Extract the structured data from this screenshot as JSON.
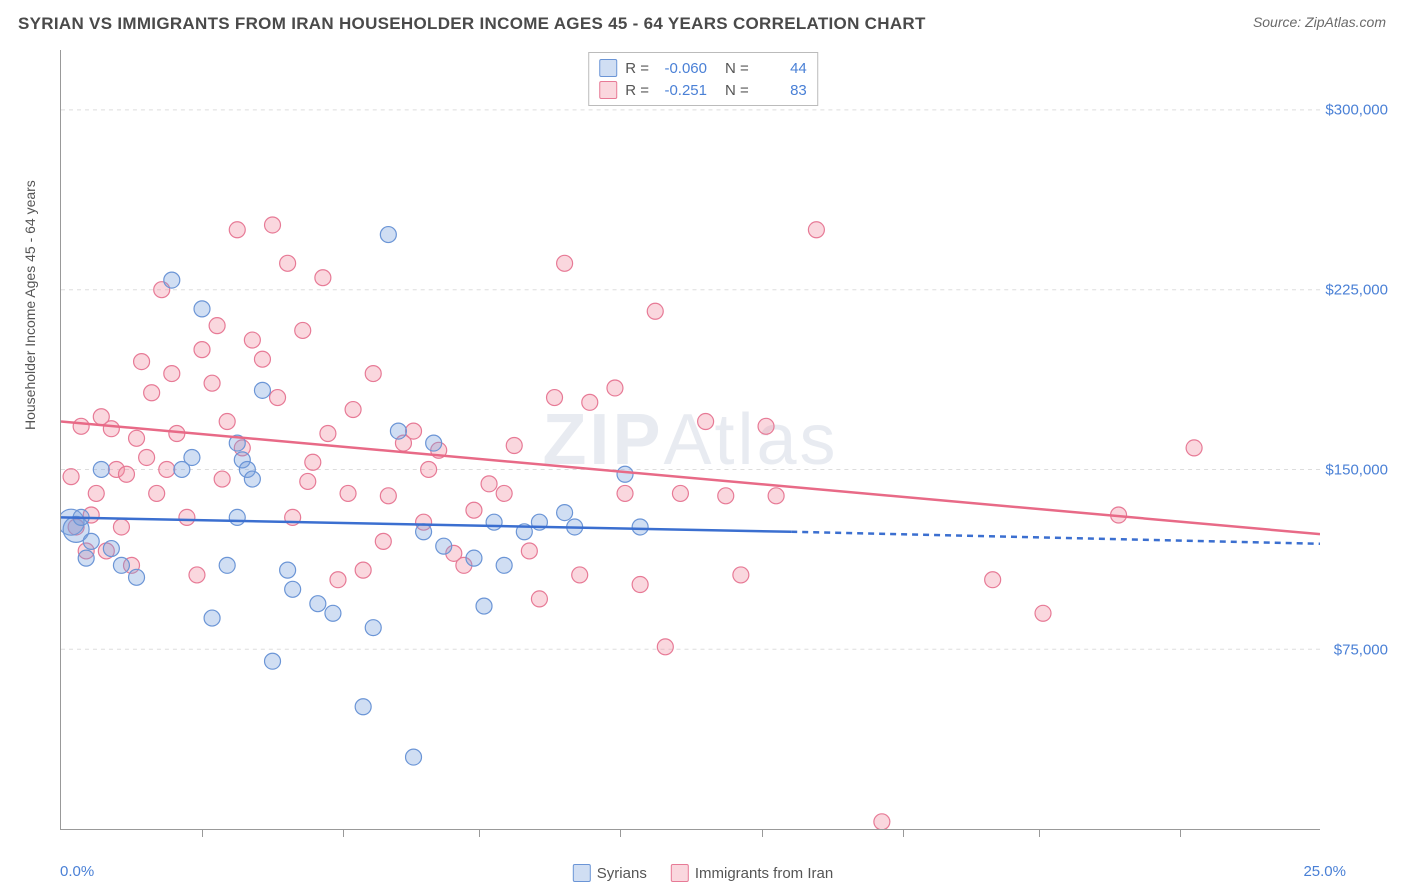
{
  "title": "SYRIAN VS IMMIGRANTS FROM IRAN HOUSEHOLDER INCOME AGES 45 - 64 YEARS CORRELATION CHART",
  "source": "Source: ZipAtlas.com",
  "watermark": "ZIPAtlas",
  "chart": {
    "type": "scatter",
    "ylabel": "Householder Income Ages 45 - 64 years",
    "xlim": [
      0,
      25
    ],
    "ylim": [
      0,
      325000
    ],
    "x_range_labels": [
      "0.0%",
      "25.0%"
    ],
    "y_tick_values": [
      75000,
      150000,
      225000,
      300000
    ],
    "y_tick_labels": [
      "$75,000",
      "$150,000",
      "$225,000",
      "$300,000"
    ],
    "x_tick_positions": [
      2.8,
      5.6,
      8.3,
      11.1,
      13.9,
      16.7,
      19.4,
      22.2
    ],
    "background_color": "#ffffff",
    "grid_color": "#dddddd",
    "axis_color": "#999999",
    "marker_radius": 8,
    "marker_radius_large": 13,
    "marker_stroke_width": 1.2,
    "trend_line_width": 2.5,
    "series": [
      {
        "name": "Syrians",
        "fill": "rgba(120,160,220,0.35)",
        "stroke": "#6b95d6",
        "line_color": "#3b6fd0",
        "r_value": "-0.060",
        "n_value": "44",
        "trend": {
          "x1": 0,
          "y1": 130000,
          "x2": 14.5,
          "y2": 124000,
          "x2_ext": 25,
          "y2_ext": 119000
        },
        "points": [
          [
            0.2,
            128000
          ],
          [
            0.3,
            125000
          ],
          [
            0.4,
            130000
          ],
          [
            0.5,
            113000
          ],
          [
            0.6,
            120000
          ],
          [
            0.8,
            150000
          ],
          [
            1.0,
            117000
          ],
          [
            1.2,
            110000
          ],
          [
            1.5,
            105000
          ],
          [
            2.2,
            229000
          ],
          [
            2.4,
            150000
          ],
          [
            2.6,
            155000
          ],
          [
            2.8,
            217000
          ],
          [
            3.0,
            88000
          ],
          [
            3.3,
            110000
          ],
          [
            3.5,
            130000
          ],
          [
            3.5,
            161000
          ],
          [
            3.6,
            154000
          ],
          [
            3.7,
            150000
          ],
          [
            3.8,
            146000
          ],
          [
            4.0,
            183000
          ],
          [
            4.2,
            70000
          ],
          [
            4.5,
            108000
          ],
          [
            4.6,
            100000
          ],
          [
            5.1,
            94000
          ],
          [
            5.4,
            90000
          ],
          [
            6.0,
            51000
          ],
          [
            6.2,
            84000
          ],
          [
            6.5,
            248000
          ],
          [
            6.7,
            166000
          ],
          [
            7.0,
            30000
          ],
          [
            7.2,
            124000
          ],
          [
            7.4,
            161000
          ],
          [
            7.6,
            118000
          ],
          [
            8.2,
            113000
          ],
          [
            8.4,
            93000
          ],
          [
            8.6,
            128000
          ],
          [
            8.8,
            110000
          ],
          [
            9.2,
            124000
          ],
          [
            9.5,
            128000
          ],
          [
            10.0,
            132000
          ],
          [
            10.2,
            126000
          ],
          [
            11.2,
            148000
          ],
          [
            11.5,
            126000
          ]
        ]
      },
      {
        "name": "Immigrants from Iran",
        "fill": "rgba(240,140,160,0.35)",
        "stroke": "#e77a96",
        "line_color": "#e86a87",
        "r_value": "-0.251",
        "n_value": "83",
        "trend": {
          "x1": 0,
          "y1": 170000,
          "x2": 25,
          "y2": 123000
        },
        "points": [
          [
            0.2,
            147000
          ],
          [
            0.3,
            126000
          ],
          [
            0.4,
            168000
          ],
          [
            0.5,
            116000
          ],
          [
            0.6,
            131000
          ],
          [
            0.7,
            140000
          ],
          [
            0.8,
            172000
          ],
          [
            1.0,
            167000
          ],
          [
            1.1,
            150000
          ],
          [
            1.2,
            126000
          ],
          [
            1.3,
            148000
          ],
          [
            1.5,
            163000
          ],
          [
            1.6,
            195000
          ],
          [
            1.7,
            155000
          ],
          [
            2.0,
            225000
          ],
          [
            2.2,
            190000
          ],
          [
            2.5,
            130000
          ],
          [
            2.7,
            106000
          ],
          [
            3.0,
            186000
          ],
          [
            3.2,
            146000
          ],
          [
            3.5,
            250000
          ],
          [
            3.6,
            159000
          ],
          [
            4.0,
            196000
          ],
          [
            4.2,
            252000
          ],
          [
            4.5,
            236000
          ],
          [
            4.8,
            208000
          ],
          [
            5.0,
            153000
          ],
          [
            5.2,
            230000
          ],
          [
            5.5,
            104000
          ],
          [
            5.8,
            175000
          ],
          [
            6.2,
            190000
          ],
          [
            6.5,
            139000
          ],
          [
            6.8,
            161000
          ],
          [
            7.0,
            166000
          ],
          [
            7.2,
            128000
          ],
          [
            7.5,
            158000
          ],
          [
            7.8,
            115000
          ],
          [
            8.0,
            110000
          ],
          [
            8.2,
            133000
          ],
          [
            8.5,
            144000
          ],
          [
            9.0,
            160000
          ],
          [
            9.3,
            116000
          ],
          [
            9.8,
            180000
          ],
          [
            10.0,
            236000
          ],
          [
            10.3,
            106000
          ],
          [
            10.5,
            178000
          ],
          [
            11.0,
            184000
          ],
          [
            11.2,
            140000
          ],
          [
            11.5,
            102000
          ],
          [
            11.8,
            216000
          ],
          [
            12.0,
            76000
          ],
          [
            12.3,
            140000
          ],
          [
            12.8,
            170000
          ],
          [
            13.2,
            139000
          ],
          [
            13.5,
            106000
          ],
          [
            14.0,
            168000
          ],
          [
            14.2,
            139000
          ],
          [
            15.0,
            250000
          ],
          [
            18.5,
            104000
          ],
          [
            19.5,
            90000
          ],
          [
            21.0,
            131000
          ],
          [
            22.5,
            159000
          ],
          [
            16.3,
            3000
          ],
          [
            3.8,
            204000
          ],
          [
            4.3,
            180000
          ],
          [
            2.8,
            200000
          ],
          [
            1.8,
            182000
          ],
          [
            0.9,
            116000
          ],
          [
            1.4,
            110000
          ],
          [
            6.0,
            108000
          ],
          [
            9.5,
            96000
          ],
          [
            5.3,
            165000
          ],
          [
            4.6,
            130000
          ],
          [
            8.8,
            140000
          ],
          [
            3.1,
            210000
          ],
          [
            2.3,
            165000
          ],
          [
            1.9,
            140000
          ],
          [
            5.7,
            140000
          ],
          [
            7.3,
            150000
          ],
          [
            6.4,
            120000
          ],
          [
            4.9,
            145000
          ],
          [
            3.3,
            170000
          ],
          [
            2.1,
            150000
          ]
        ]
      }
    ]
  },
  "legend": {
    "series1_label": "Syrians",
    "series2_label": "Immigrants from Iran"
  },
  "stat_labels": {
    "r": "R =",
    "n": "N ="
  }
}
